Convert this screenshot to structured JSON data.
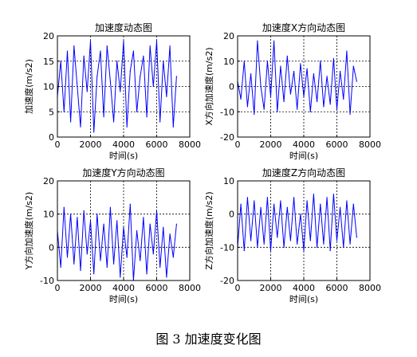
{
  "figure_caption": "图 3  加速度变化图",
  "colors": {
    "series": "#0000ff",
    "axis": "#000000",
    "grid": "#000000",
    "background": "#ffffff"
  },
  "chart_data": [
    {
      "type": "line",
      "title": "加速度动态图",
      "xlabel": "时间(s)",
      "ylabel": "加速度(m/s2)",
      "xlim": [
        0,
        8000
      ],
      "ylim": [
        0,
        20
      ],
      "xticks": [
        0,
        2000,
        4000,
        6000,
        8000
      ],
      "yticks": [
        0,
        5,
        10,
        15,
        20
      ],
      "grid": true,
      "series": [
        {
          "x": [
            0,
            200,
            400,
            600,
            800,
            1000,
            1200,
            1400,
            1600,
            1800,
            2000,
            2200,
            2400,
            2600,
            2800,
            3000,
            3200,
            3400,
            3600,
            3800,
            4000,
            4200,
            4400,
            4600,
            4800,
            5000,
            5200,
            5400,
            5600,
            5800,
            6000,
            6200,
            6400,
            6600,
            6800,
            7000,
            7200
          ],
          "y": [
            8,
            15,
            5,
            17,
            3,
            18,
            10,
            2,
            16,
            9,
            19,
            1,
            12,
            17,
            4,
            18,
            11,
            3,
            15,
            9,
            19,
            2,
            13,
            17,
            5,
            12,
            16,
            4,
            18,
            10,
            19,
            3,
            15,
            8,
            18,
            2,
            12
          ]
        }
      ]
    },
    {
      "type": "line",
      "title": "加速度X方向动态图",
      "xlabel": "时间(s)",
      "ylabel": "X方向加速度(m/s2)",
      "xlim": [
        0,
        8000
      ],
      "ylim": [
        -20,
        20
      ],
      "xticks": [
        0,
        2000,
        4000,
        6000,
        8000
      ],
      "yticks": [
        -20,
        -10,
        0,
        10,
        20
      ],
      "grid": true,
      "series": [
        {
          "x": [
            0,
            200,
            400,
            600,
            800,
            1000,
            1200,
            1400,
            1600,
            1800,
            2000,
            2200,
            2400,
            2600,
            2800,
            3000,
            3200,
            3400,
            3600,
            3800,
            4000,
            4200,
            4400,
            4600,
            4800,
            5000,
            5200,
            5400,
            5600,
            5800,
            6000,
            6200,
            6400,
            6600,
            6800,
            7000,
            7200
          ],
          "y": [
            2,
            -5,
            10,
            -8,
            5,
            -11,
            18,
            0,
            -9,
            10,
            -4,
            18,
            -10,
            8,
            -6,
            12,
            -3,
            6,
            -9,
            9,
            -4,
            7,
            -10,
            5,
            -6,
            10,
            -8,
            4,
            -7,
            11,
            -9,
            6,
            -5,
            14,
            -11,
            8,
            2
          ]
        }
      ]
    },
    {
      "type": "line",
      "title": "加速度Y方向动态图",
      "xlabel": "时间(s)",
      "ylabel": "Y方向加速度(m/s2)",
      "xlim": [
        0,
        8000
      ],
      "ylim": [
        -10,
        20
      ],
      "xticks": [
        0,
        2000,
        4000,
        6000,
        8000
      ],
      "yticks": [
        -10,
        0,
        10,
        20
      ],
      "grid": true,
      "series": [
        {
          "x": [
            0,
            200,
            400,
            600,
            800,
            1000,
            1200,
            1400,
            1600,
            1800,
            2000,
            2200,
            2400,
            2600,
            2800,
            3000,
            3200,
            3400,
            3600,
            3800,
            4000,
            4200,
            4400,
            4600,
            4800,
            5000,
            5200,
            5400,
            5600,
            5800,
            6000,
            6200,
            6400,
            6600,
            6800,
            7000,
            7200
          ],
          "y": [
            5,
            -6,
            12,
            -3,
            10,
            -5,
            9,
            -7,
            11,
            -2,
            8,
            -8,
            10,
            -4,
            7,
            -6,
            12,
            -5,
            8,
            -9,
            6,
            -3,
            13,
            -10,
            5,
            -4,
            9,
            -8,
            7,
            -2,
            11,
            -6,
            6,
            -9,
            4,
            -3,
            7
          ]
        }
      ]
    },
    {
      "type": "line",
      "title": "加速度Z方向动态图",
      "xlabel": "时间(s)",
      "ylabel": "Z方向加速度(m/s2)",
      "xlim": [
        0,
        8000
      ],
      "ylim": [
        -20,
        10
      ],
      "xticks": [
        0,
        2000,
        4000,
        6000,
        8000
      ],
      "yticks": [
        -20,
        -10,
        0,
        10
      ],
      "grid": true,
      "series": [
        {
          "x": [
            0,
            200,
            400,
            600,
            800,
            1000,
            1200,
            1400,
            1600,
            1800,
            2000,
            2200,
            2400,
            2600,
            2800,
            3000,
            3200,
            3400,
            3600,
            3800,
            4000,
            4200,
            4400,
            4600,
            4800,
            5000,
            5200,
            5400,
            5600,
            5800,
            6000,
            6200,
            6400,
            6600,
            6800,
            7000,
            7200
          ],
          "y": [
            -10,
            3,
            -11,
            5,
            -8,
            4,
            -10,
            2,
            -9,
            5,
            -11,
            3,
            -7,
            4,
            -10,
            2,
            -8,
            5,
            -9,
            0,
            -11,
            4,
            -8,
            6,
            -10,
            3,
            -9,
            5,
            -11,
            6,
            -8,
            2,
            -10,
            4,
            -9,
            3,
            -7
          ]
        }
      ]
    }
  ]
}
